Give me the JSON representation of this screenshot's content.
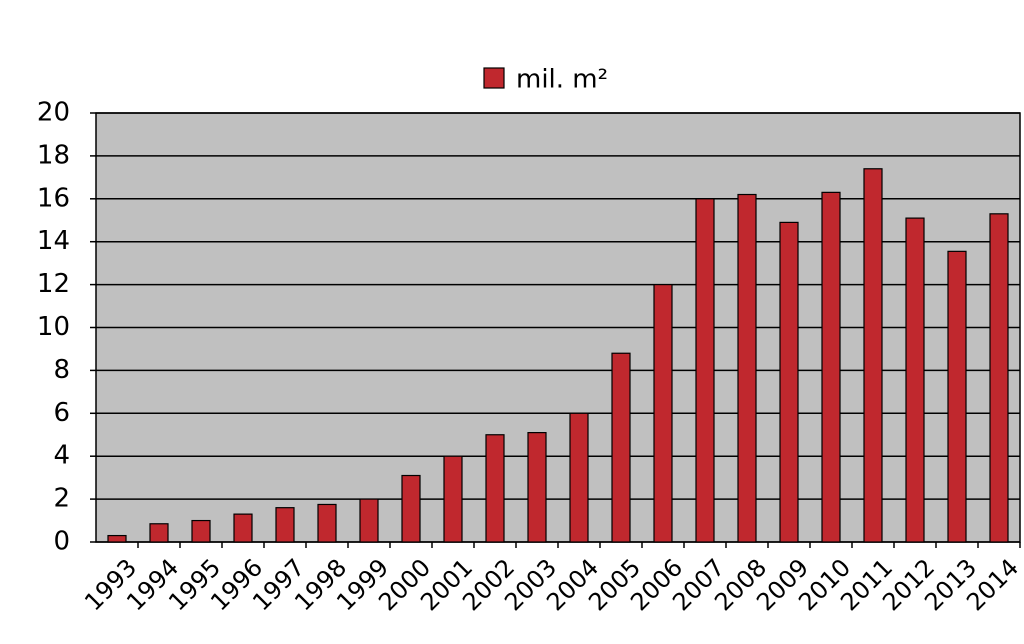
{
  "chart_data": {
    "type": "bar",
    "categories": [
      "1993",
      "1994",
      "1995",
      "1996",
      "1997",
      "1998",
      "1999",
      "2000",
      "2001",
      "2002",
      "2003",
      "2004",
      "2005",
      "2006",
      "2007",
      "2008",
      "2009",
      "2010",
      "2011",
      "2012",
      "2013",
      "2014"
    ],
    "series": [
      {
        "name": "mil. m²",
        "color": "#c0282e",
        "values": [
          0.3,
          0.85,
          1.0,
          1.3,
          1.6,
          1.75,
          2.0,
          3.1,
          4.0,
          5.0,
          5.1,
          6.0,
          8.8,
          12.0,
          16.0,
          16.2,
          14.9,
          16.3,
          17.4,
          15.1,
          13.55,
          15.3
        ]
      }
    ],
    "ylim": [
      0,
      20
    ],
    "yticks": [
      0,
      2,
      4,
      6,
      8,
      10,
      12,
      14,
      16,
      18,
      20
    ],
    "grid": true,
    "legend": "top"
  }
}
